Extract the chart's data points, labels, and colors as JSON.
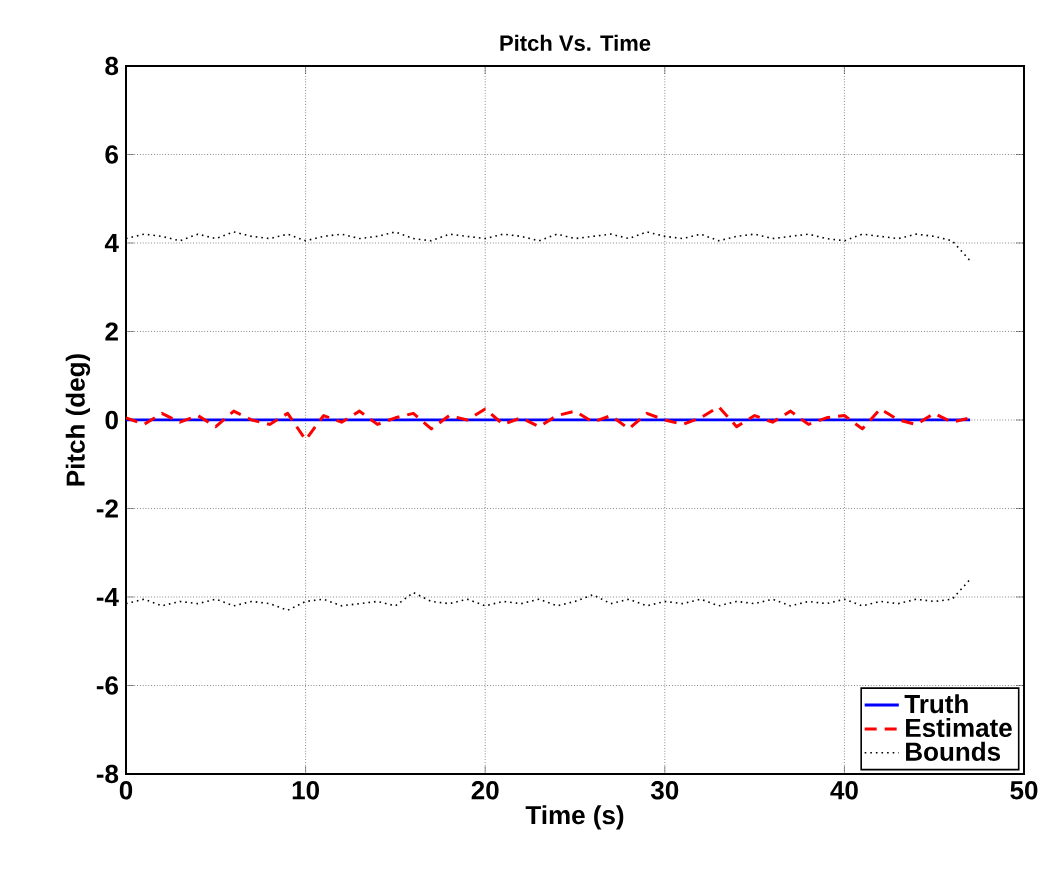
{
  "chart_data": {
    "type": "line",
    "title": "Pitch Vs. Time",
    "xlabel": "Time (s)",
    "ylabel": "Pitch (deg)",
    "x": [
      0,
      1,
      2,
      3,
      4,
      5,
      6,
      7,
      8,
      9,
      10,
      11,
      12,
      13,
      14,
      15,
      16,
      17,
      18,
      19,
      20,
      21,
      22,
      23,
      24,
      25,
      26,
      27,
      28,
      29,
      30,
      31,
      32,
      33,
      34,
      35,
      36,
      37,
      38,
      39,
      40,
      41,
      42,
      43,
      44,
      45,
      46,
      47
    ],
    "xlim": [
      0,
      50
    ],
    "xticks": [
      0,
      10,
      20,
      30,
      40,
      50
    ],
    "ylim": [
      -8,
      8
    ],
    "yticks": [
      -8,
      -6,
      -4,
      -2,
      0,
      2,
      4,
      6,
      8
    ],
    "grid": true,
    "legend": "bottom right",
    "marker": "none",
    "series": [
      {
        "name": "Truth",
        "color": "#0000ff",
        "line_style": "solid",
        "values": [
          0,
          0,
          0,
          0,
          0,
          0,
          0,
          0,
          0,
          0,
          0,
          0,
          0,
          0,
          0,
          0,
          0,
          0,
          0,
          0,
          0,
          0,
          0,
          0,
          0,
          0,
          0,
          0,
          0,
          0,
          0,
          0,
          0,
          0,
          0,
          0,
          0,
          0,
          0,
          0,
          0,
          0,
          0,
          0,
          0,
          0,
          0,
          0
        ]
      },
      {
        "name": "Estimate",
        "color": "#ff0000",
        "line_style": "dashed",
        "values": [
          0.05,
          -0.1,
          0.15,
          -0.05,
          0.1,
          -0.15,
          0.2,
          0.0,
          -0.1,
          0.15,
          -0.45,
          0.1,
          -0.05,
          0.2,
          -0.1,
          0.05,
          0.15,
          -0.2,
          0.1,
          0.0,
          0.25,
          -0.1,
          0.05,
          -0.15,
          0.1,
          0.2,
          -0.05,
          0.1,
          -0.2,
          0.15,
          0.0,
          -0.1,
          0.05,
          0.3,
          -0.15,
          0.1,
          -0.05,
          0.2,
          -0.1,
          0.05,
          0.1,
          -0.2,
          0.25,
          0.0,
          -0.1,
          0.15,
          -0.05,
          0.05
        ]
      },
      {
        "name": "Bounds",
        "color": "#000000",
        "line_style": "dotted",
        "values": [
          4.1,
          4.2,
          4.15,
          4.05,
          4.2,
          4.1,
          4.25,
          4.15,
          4.1,
          4.2,
          4.05,
          4.15,
          4.2,
          4.1,
          4.15,
          4.25,
          4.1,
          4.05,
          4.2,
          4.15,
          4.1,
          4.2,
          4.15,
          4.05,
          4.2,
          4.1,
          4.15,
          4.2,
          4.1,
          4.25,
          4.15,
          4.1,
          4.2,
          4.05,
          4.15,
          4.2,
          4.1,
          4.15,
          4.2,
          4.1,
          4.05,
          4.2,
          4.15,
          4.1,
          4.2,
          4.15,
          4.05,
          3.6
        ]
      },
      {
        "color": "#000000",
        "line_style": "dotted",
        "values": [
          -4.15,
          -4.05,
          -4.2,
          -4.1,
          -4.15,
          -4.05,
          -4.2,
          -4.1,
          -4.15,
          -4.3,
          -4.1,
          -4.05,
          -4.2,
          -4.15,
          -4.1,
          -4.2,
          -3.9,
          -4.1,
          -4.15,
          -4.05,
          -4.2,
          -4.1,
          -4.15,
          -4.05,
          -4.2,
          -4.1,
          -3.95,
          -4.15,
          -4.05,
          -4.2,
          -4.1,
          -4.15,
          -4.05,
          -4.2,
          -4.1,
          -4.15,
          -4.05,
          -4.2,
          -4.1,
          -4.15,
          -4.05,
          -4.2,
          -4.1,
          -4.15,
          -4.05,
          -4.1,
          -4.05,
          -3.6
        ]
      }
    ]
  }
}
